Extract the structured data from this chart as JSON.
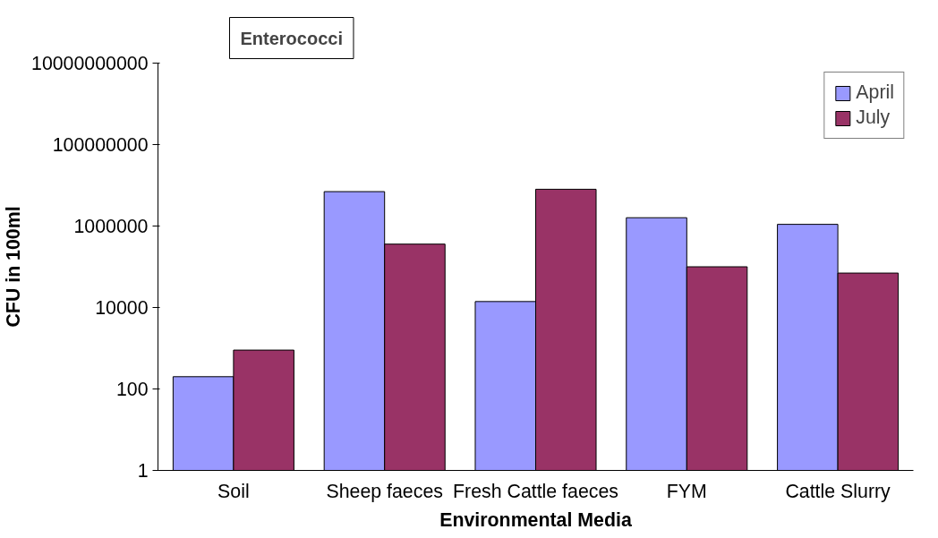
{
  "chart_data": {
    "type": "bar",
    "title": "Enterococci",
    "xlabel": "Environmental Media",
    "ylabel": "CFU in 100ml",
    "categories": [
      "Soil",
      "Sheep faeces",
      "Fresh Cattle faeces",
      "FYM",
      "Cattle Slurry"
    ],
    "series": [
      {
        "name": "April",
        "color": "#9999ff",
        "values": [
          200,
          7000000,
          14000,
          1600000,
          1100000
        ]
      },
      {
        "name": "July",
        "color": "#993366",
        "values": [
          900,
          360000,
          8000000,
          100000,
          70000
        ]
      }
    ],
    "log": true,
    "ylim": [
      1,
      10000000000
    ],
    "yticks": [
      1,
      100,
      10000,
      1000000,
      100000000,
      10000000000
    ],
    "grid": false,
    "legend": "top right"
  }
}
